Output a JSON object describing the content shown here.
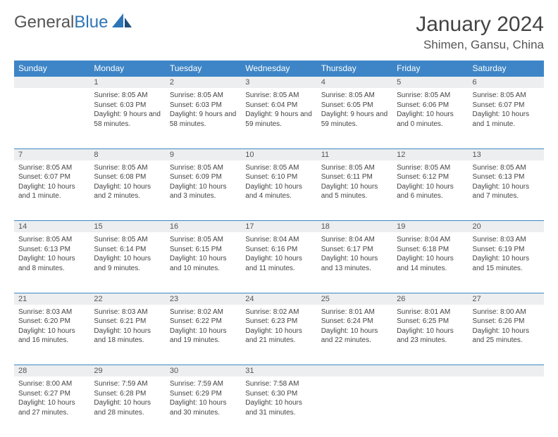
{
  "logo": {
    "text1": "General",
    "text2": "Blue"
  },
  "title": "January 2024",
  "location": "Shimen, Gansu, China",
  "colors": {
    "header_bg": "#3d85c6",
    "header_text": "#ffffff",
    "daynum_bg": "#eceeef",
    "border": "#3d85c6",
    "logo_gray": "#555555",
    "logo_blue": "#2e75b6"
  },
  "weekdays": [
    "Sunday",
    "Monday",
    "Tuesday",
    "Wednesday",
    "Thursday",
    "Friday",
    "Saturday"
  ],
  "weeks": [
    {
      "nums": [
        "",
        "1",
        "2",
        "3",
        "4",
        "5",
        "6"
      ],
      "cells": [
        null,
        {
          "sunrise": "Sunrise: 8:05 AM",
          "sunset": "Sunset: 6:03 PM",
          "daylight": "Daylight: 9 hours and 58 minutes."
        },
        {
          "sunrise": "Sunrise: 8:05 AM",
          "sunset": "Sunset: 6:03 PM",
          "daylight": "Daylight: 9 hours and 58 minutes."
        },
        {
          "sunrise": "Sunrise: 8:05 AM",
          "sunset": "Sunset: 6:04 PM",
          "daylight": "Daylight: 9 hours and 59 minutes."
        },
        {
          "sunrise": "Sunrise: 8:05 AM",
          "sunset": "Sunset: 6:05 PM",
          "daylight": "Daylight: 9 hours and 59 minutes."
        },
        {
          "sunrise": "Sunrise: 8:05 AM",
          "sunset": "Sunset: 6:06 PM",
          "daylight": "Daylight: 10 hours and 0 minutes."
        },
        {
          "sunrise": "Sunrise: 8:05 AM",
          "sunset": "Sunset: 6:07 PM",
          "daylight": "Daylight: 10 hours and 1 minute."
        }
      ]
    },
    {
      "nums": [
        "7",
        "8",
        "9",
        "10",
        "11",
        "12",
        "13"
      ],
      "cells": [
        {
          "sunrise": "Sunrise: 8:05 AM",
          "sunset": "Sunset: 6:07 PM",
          "daylight": "Daylight: 10 hours and 1 minute."
        },
        {
          "sunrise": "Sunrise: 8:05 AM",
          "sunset": "Sunset: 6:08 PM",
          "daylight": "Daylight: 10 hours and 2 minutes."
        },
        {
          "sunrise": "Sunrise: 8:05 AM",
          "sunset": "Sunset: 6:09 PM",
          "daylight": "Daylight: 10 hours and 3 minutes."
        },
        {
          "sunrise": "Sunrise: 8:05 AM",
          "sunset": "Sunset: 6:10 PM",
          "daylight": "Daylight: 10 hours and 4 minutes."
        },
        {
          "sunrise": "Sunrise: 8:05 AM",
          "sunset": "Sunset: 6:11 PM",
          "daylight": "Daylight: 10 hours and 5 minutes."
        },
        {
          "sunrise": "Sunrise: 8:05 AM",
          "sunset": "Sunset: 6:12 PM",
          "daylight": "Daylight: 10 hours and 6 minutes."
        },
        {
          "sunrise": "Sunrise: 8:05 AM",
          "sunset": "Sunset: 6:13 PM",
          "daylight": "Daylight: 10 hours and 7 minutes."
        }
      ]
    },
    {
      "nums": [
        "14",
        "15",
        "16",
        "17",
        "18",
        "19",
        "20"
      ],
      "cells": [
        {
          "sunrise": "Sunrise: 8:05 AM",
          "sunset": "Sunset: 6:13 PM",
          "daylight": "Daylight: 10 hours and 8 minutes."
        },
        {
          "sunrise": "Sunrise: 8:05 AM",
          "sunset": "Sunset: 6:14 PM",
          "daylight": "Daylight: 10 hours and 9 minutes."
        },
        {
          "sunrise": "Sunrise: 8:05 AM",
          "sunset": "Sunset: 6:15 PM",
          "daylight": "Daylight: 10 hours and 10 minutes."
        },
        {
          "sunrise": "Sunrise: 8:04 AM",
          "sunset": "Sunset: 6:16 PM",
          "daylight": "Daylight: 10 hours and 11 minutes."
        },
        {
          "sunrise": "Sunrise: 8:04 AM",
          "sunset": "Sunset: 6:17 PM",
          "daylight": "Daylight: 10 hours and 13 minutes."
        },
        {
          "sunrise": "Sunrise: 8:04 AM",
          "sunset": "Sunset: 6:18 PM",
          "daylight": "Daylight: 10 hours and 14 minutes."
        },
        {
          "sunrise": "Sunrise: 8:03 AM",
          "sunset": "Sunset: 6:19 PM",
          "daylight": "Daylight: 10 hours and 15 minutes."
        }
      ]
    },
    {
      "nums": [
        "21",
        "22",
        "23",
        "24",
        "25",
        "26",
        "27"
      ],
      "cells": [
        {
          "sunrise": "Sunrise: 8:03 AM",
          "sunset": "Sunset: 6:20 PM",
          "daylight": "Daylight: 10 hours and 16 minutes."
        },
        {
          "sunrise": "Sunrise: 8:03 AM",
          "sunset": "Sunset: 6:21 PM",
          "daylight": "Daylight: 10 hours and 18 minutes."
        },
        {
          "sunrise": "Sunrise: 8:02 AM",
          "sunset": "Sunset: 6:22 PM",
          "daylight": "Daylight: 10 hours and 19 minutes."
        },
        {
          "sunrise": "Sunrise: 8:02 AM",
          "sunset": "Sunset: 6:23 PM",
          "daylight": "Daylight: 10 hours and 21 minutes."
        },
        {
          "sunrise": "Sunrise: 8:01 AM",
          "sunset": "Sunset: 6:24 PM",
          "daylight": "Daylight: 10 hours and 22 minutes."
        },
        {
          "sunrise": "Sunrise: 8:01 AM",
          "sunset": "Sunset: 6:25 PM",
          "daylight": "Daylight: 10 hours and 23 minutes."
        },
        {
          "sunrise": "Sunrise: 8:00 AM",
          "sunset": "Sunset: 6:26 PM",
          "daylight": "Daylight: 10 hours and 25 minutes."
        }
      ]
    },
    {
      "nums": [
        "28",
        "29",
        "30",
        "31",
        "",
        "",
        ""
      ],
      "cells": [
        {
          "sunrise": "Sunrise: 8:00 AM",
          "sunset": "Sunset: 6:27 PM",
          "daylight": "Daylight: 10 hours and 27 minutes."
        },
        {
          "sunrise": "Sunrise: 7:59 AM",
          "sunset": "Sunset: 6:28 PM",
          "daylight": "Daylight: 10 hours and 28 minutes."
        },
        {
          "sunrise": "Sunrise: 7:59 AM",
          "sunset": "Sunset: 6:29 PM",
          "daylight": "Daylight: 10 hours and 30 minutes."
        },
        {
          "sunrise": "Sunrise: 7:58 AM",
          "sunset": "Sunset: 6:30 PM",
          "daylight": "Daylight: 10 hours and 31 minutes."
        },
        null,
        null,
        null
      ]
    }
  ]
}
